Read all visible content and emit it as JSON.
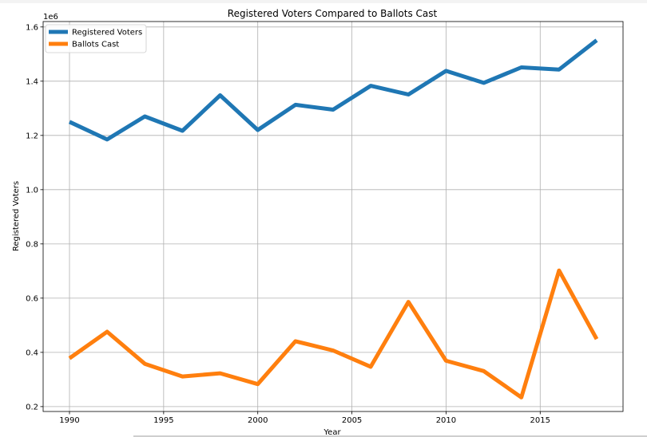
{
  "chart_data": {
    "type": "line",
    "title": "Registered Voters Compared to Ballots Cast",
    "xlabel": "Year",
    "ylabel": "Registered Voters",
    "offset_label": "1e6",
    "x": [
      1990,
      1992,
      1994,
      1996,
      1998,
      2000,
      2002,
      2004,
      2006,
      2008,
      2010,
      2012,
      2014,
      2016,
      2018
    ],
    "series": [
      {
        "name": "Registered Voters",
        "color": "#1f77b4",
        "values": [
          1.25,
          1.185,
          1.27,
          1.217,
          1.348,
          1.22,
          1.313,
          1.295,
          1.383,
          1.351,
          1.438,
          1.394,
          1.451,
          1.443,
          1.551
        ]
      },
      {
        "name": "Ballots Cast",
        "color": "#ff7f0e",
        "values": [
          0.378,
          0.476,
          0.358,
          0.311,
          0.323,
          0.283,
          0.441,
          0.407,
          0.347,
          0.586,
          0.369,
          0.331,
          0.234,
          0.702,
          0.449
        ]
      }
    ],
    "xlim": [
      1988.6,
      2019.4
    ],
    "ylim": [
      0.182,
      1.62
    ],
    "xticks": [
      1990,
      1995,
      2000,
      2005,
      2010,
      2015
    ],
    "yticks": [
      0.2,
      0.4,
      0.6,
      0.8,
      1.0,
      1.2,
      1.4,
      1.6
    ],
    "xtick_labels": [
      "1990",
      "1995",
      "2000",
      "2005",
      "2010",
      "2015"
    ],
    "ytick_labels": [
      "0.2",
      "0.4",
      "0.6",
      "0.8",
      "1.0",
      "1.2",
      "1.4",
      "1.6"
    ],
    "grid": true,
    "legend_position": "top-left"
  }
}
